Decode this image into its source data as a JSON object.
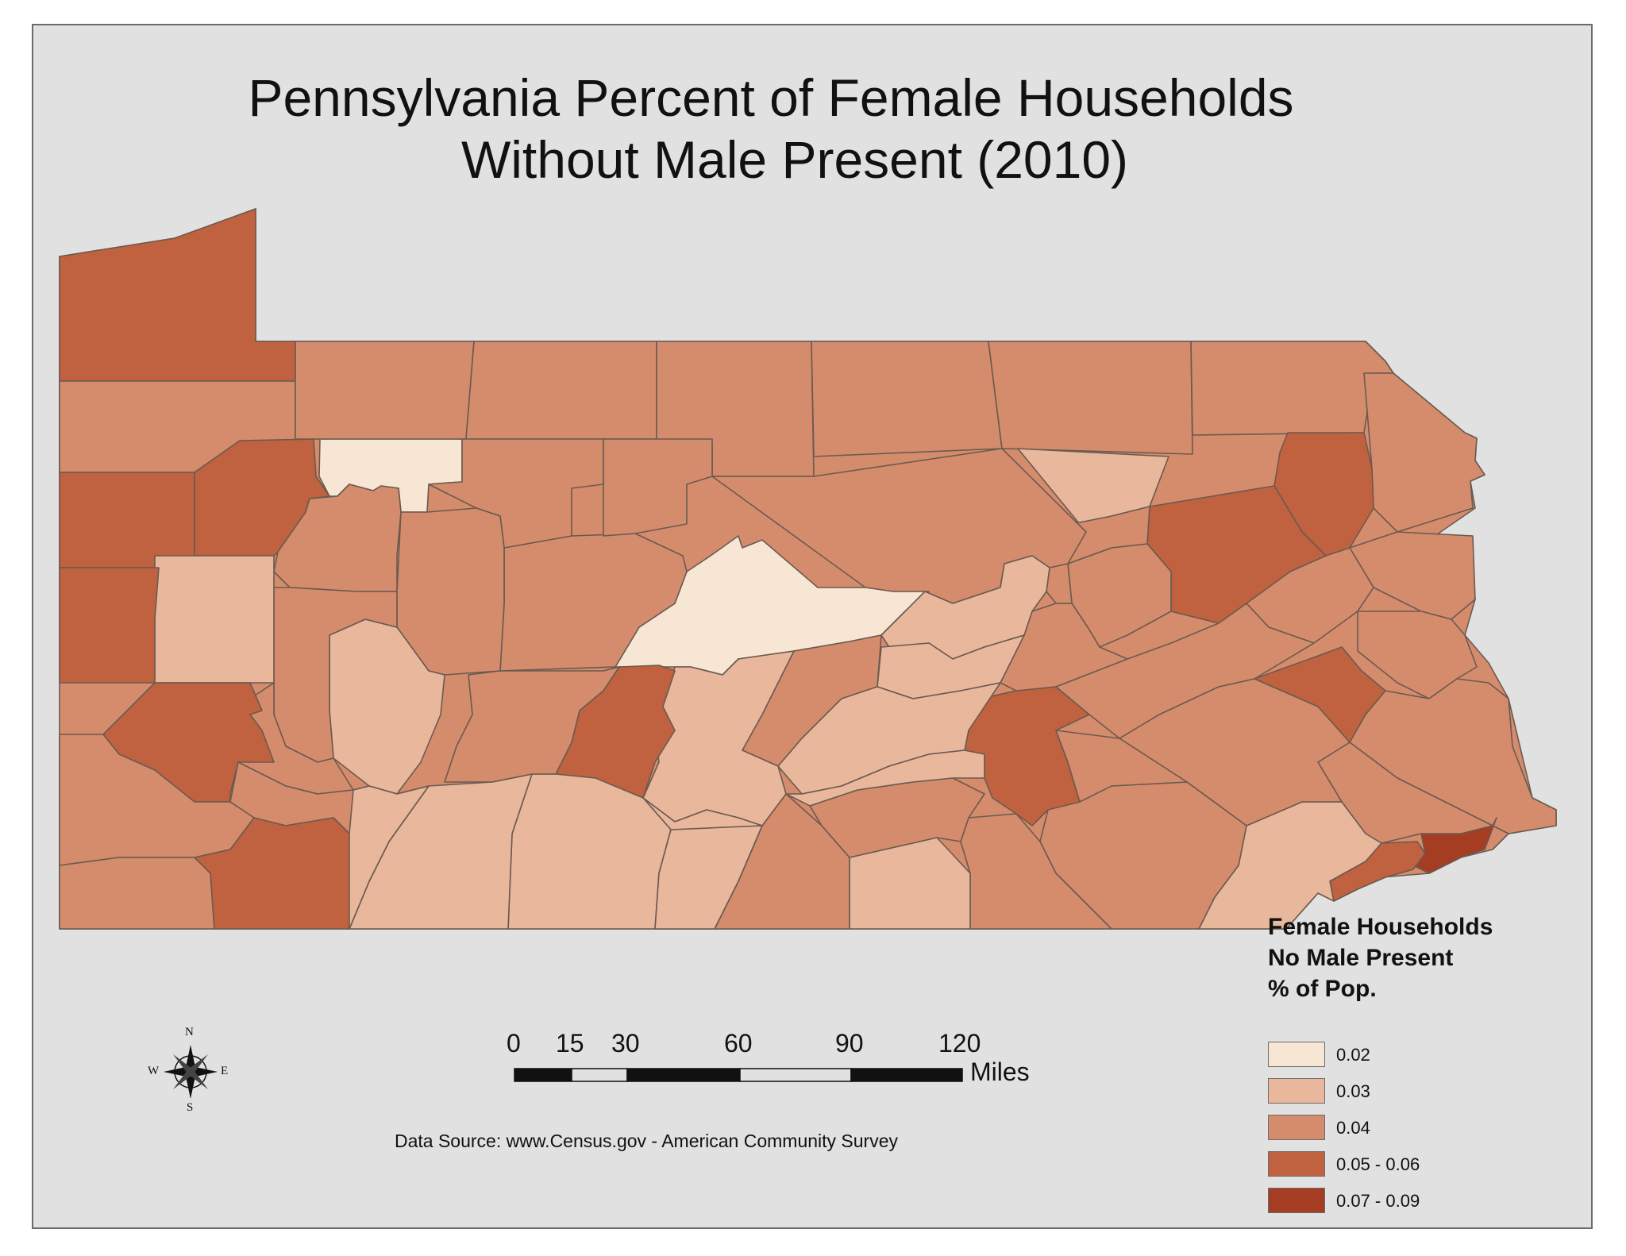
{
  "title": {
    "line1": "Pennsylvania Percent of Female Households",
    "line2": "Without Male Present (2010)"
  },
  "legend": {
    "title_line1": "Female Households",
    "title_line2": "No Male Present",
    "title_line3": "% of Pop.",
    "classes": [
      {
        "label": "0.02",
        "color": "#f7e6d3"
      },
      {
        "label": "0.03",
        "color": "#e8b79c"
      },
      {
        "label": "0.04",
        "color": "#d58c6c"
      },
      {
        "label": "0.05 - 0.06",
        "color": "#c0623f"
      },
      {
        "label": "0.07 - 0.09",
        "color": "#a53d22"
      }
    ]
  },
  "scale_bar": {
    "ticks": [
      "0",
      "15",
      "30",
      "60",
      "90",
      "120"
    ],
    "unit": "Miles"
  },
  "compass": {
    "n": "N",
    "s": "S",
    "e": "E",
    "w": "W"
  },
  "source": "Data Source: www.Census.gov - American Community Survey",
  "colors": {
    "background": "#e1e1e1",
    "county_border": "#6a5a50"
  }
}
